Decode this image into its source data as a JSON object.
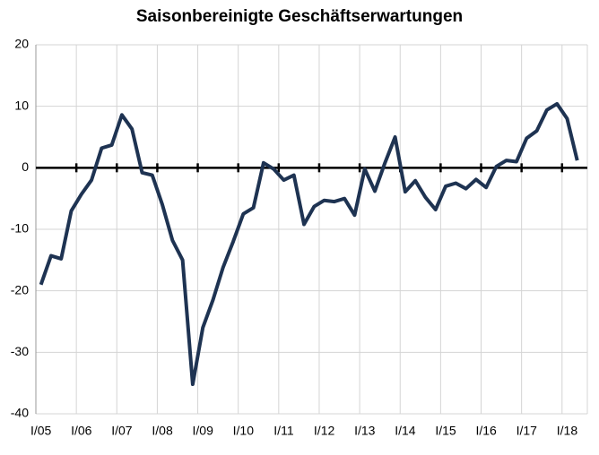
{
  "chart_data": {
    "type": "line",
    "title": "Saisonbereinigte Geschäftserwartungen",
    "categories": [
      "I/05",
      null,
      null,
      null,
      "I/06",
      null,
      null,
      null,
      "I/07",
      null,
      null,
      null,
      "I/08",
      null,
      null,
      null,
      "I/09",
      null,
      null,
      null,
      "I/10",
      null,
      null,
      null,
      "I/11",
      null,
      null,
      null,
      "I/12",
      null,
      null,
      null,
      "I/13",
      null,
      null,
      null,
      "I/14",
      null,
      null,
      null,
      "I/15",
      null,
      null,
      null,
      "I/16",
      null,
      null,
      null,
      "I/17",
      null,
      null,
      null,
      "I/18",
      null
    ],
    "series": [
      {
        "color": "#1e3352",
        "values": [
          -19,
          -14.3,
          -14.8,
          -7,
          -4.3,
          -2,
          3.2,
          3.7,
          8.6,
          6.3,
          -0.8,
          -1.2,
          -6,
          -11.8,
          -15,
          -35.2,
          -26,
          -21.5,
          -16.2,
          -12,
          -7.5,
          -6.5,
          0.8,
          -0.2,
          -2,
          -1.2,
          -9.2,
          -6.3,
          -5.3,
          -5.5,
          -5,
          -7.7,
          -0.2,
          -3.8,
          0.8,
          5,
          -3.9,
          -2.1,
          -4.8,
          -6.8,
          -3,
          -2.5,
          -3.4,
          -1.9,
          -3.2,
          0.2,
          1.2,
          1,
          4.8,
          6,
          9.4,
          10.4,
          8,
          1.2
        ]
      }
    ],
    "ylim": [
      -40,
      20
    ],
    "yticks": [
      -40,
      -30,
      -20,
      -10,
      0,
      10,
      20
    ],
    "grid": true
  }
}
